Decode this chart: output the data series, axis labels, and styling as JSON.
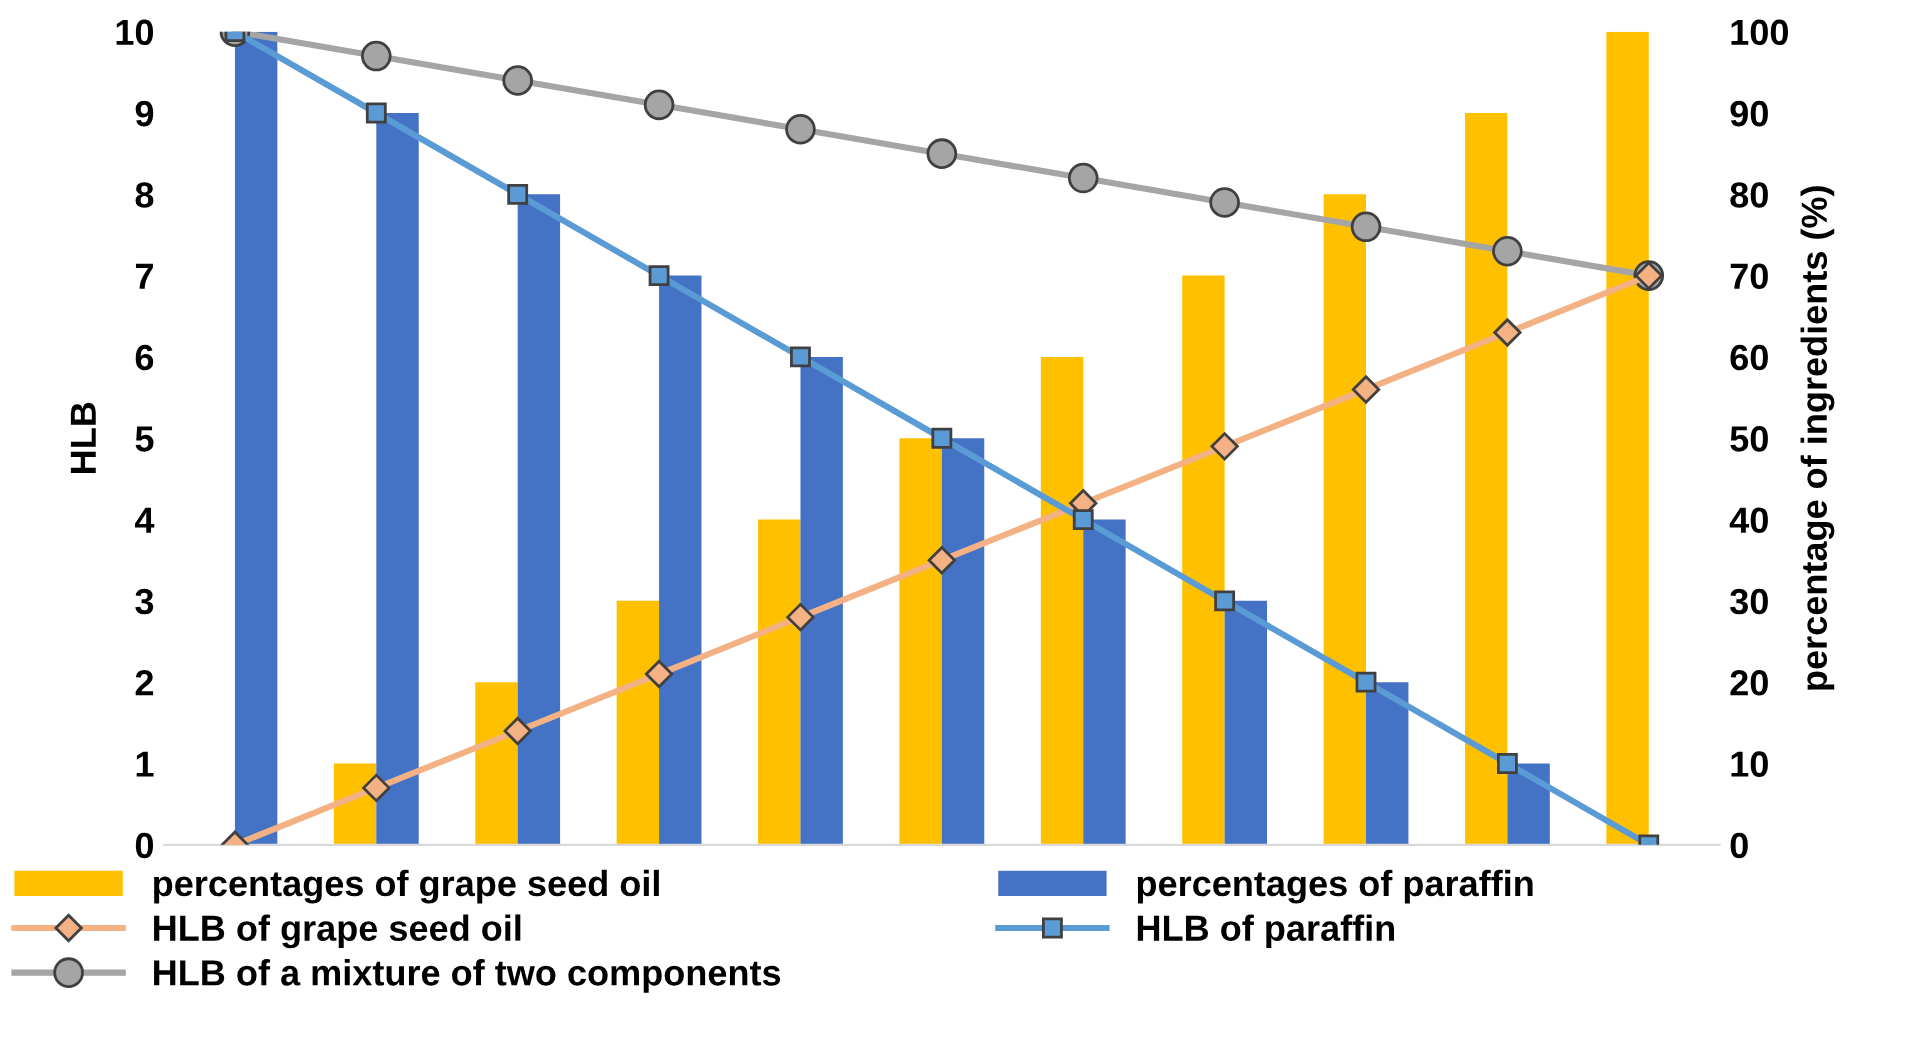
{
  "chart_data": {
    "type": "bar",
    "categories": [
      null,
      null,
      null,
      null,
      null,
      null,
      null,
      null,
      null,
      null,
      null
    ],
    "ylabel": "HLB",
    "y2label": "percentage of ingredients (%)",
    "ylim": [
      0,
      10
    ],
    "yticks": [
      0,
      1,
      2,
      3,
      4,
      5,
      6,
      7,
      8,
      9,
      10
    ],
    "y2lim": [
      0,
      100
    ],
    "y2ticks": [
      0,
      10,
      20,
      30,
      40,
      50,
      60,
      70,
      80,
      90,
      100
    ],
    "legend": "bottom",
    "grid": false,
    "series": [
      {
        "name": "percentages of grape seed oil",
        "axis": "y2",
        "color": "#ffc000",
        "values": [
          0,
          10,
          20,
          30,
          40,
          50,
          60,
          70,
          80,
          90,
          100
        ]
      },
      {
        "name": "percentages of paraffin",
        "axis": "y2",
        "color": "#4472c4",
        "values": [
          100,
          90,
          80,
          70,
          60,
          50,
          40,
          30,
          20,
          10,
          null
        ]
      },
      {
        "name": "HLB of grape seed oil",
        "type": "line",
        "color": "#f4b183",
        "marker": "diamond",
        "values": [
          0,
          0.7,
          1.4,
          2.1,
          2.8,
          3.5,
          4.2,
          4.9,
          5.6,
          6.3,
          7
        ]
      },
      {
        "name": "HLB of paraffin",
        "type": "line",
        "color": "#5b9bd5",
        "marker": "square",
        "values": [
          10,
          9,
          8,
          7,
          6,
          5,
          4,
          3,
          2,
          1,
          0
        ]
      },
      {
        "name": "HLB of a mixture of two components",
        "type": "line",
        "color": "#a5a5a5",
        "marker": "circle",
        "values": [
          10,
          9.7,
          9.4,
          9.1,
          8.8,
          8.5,
          8.2,
          7.9,
          7.6,
          7.3,
          7
        ]
      }
    ]
  }
}
